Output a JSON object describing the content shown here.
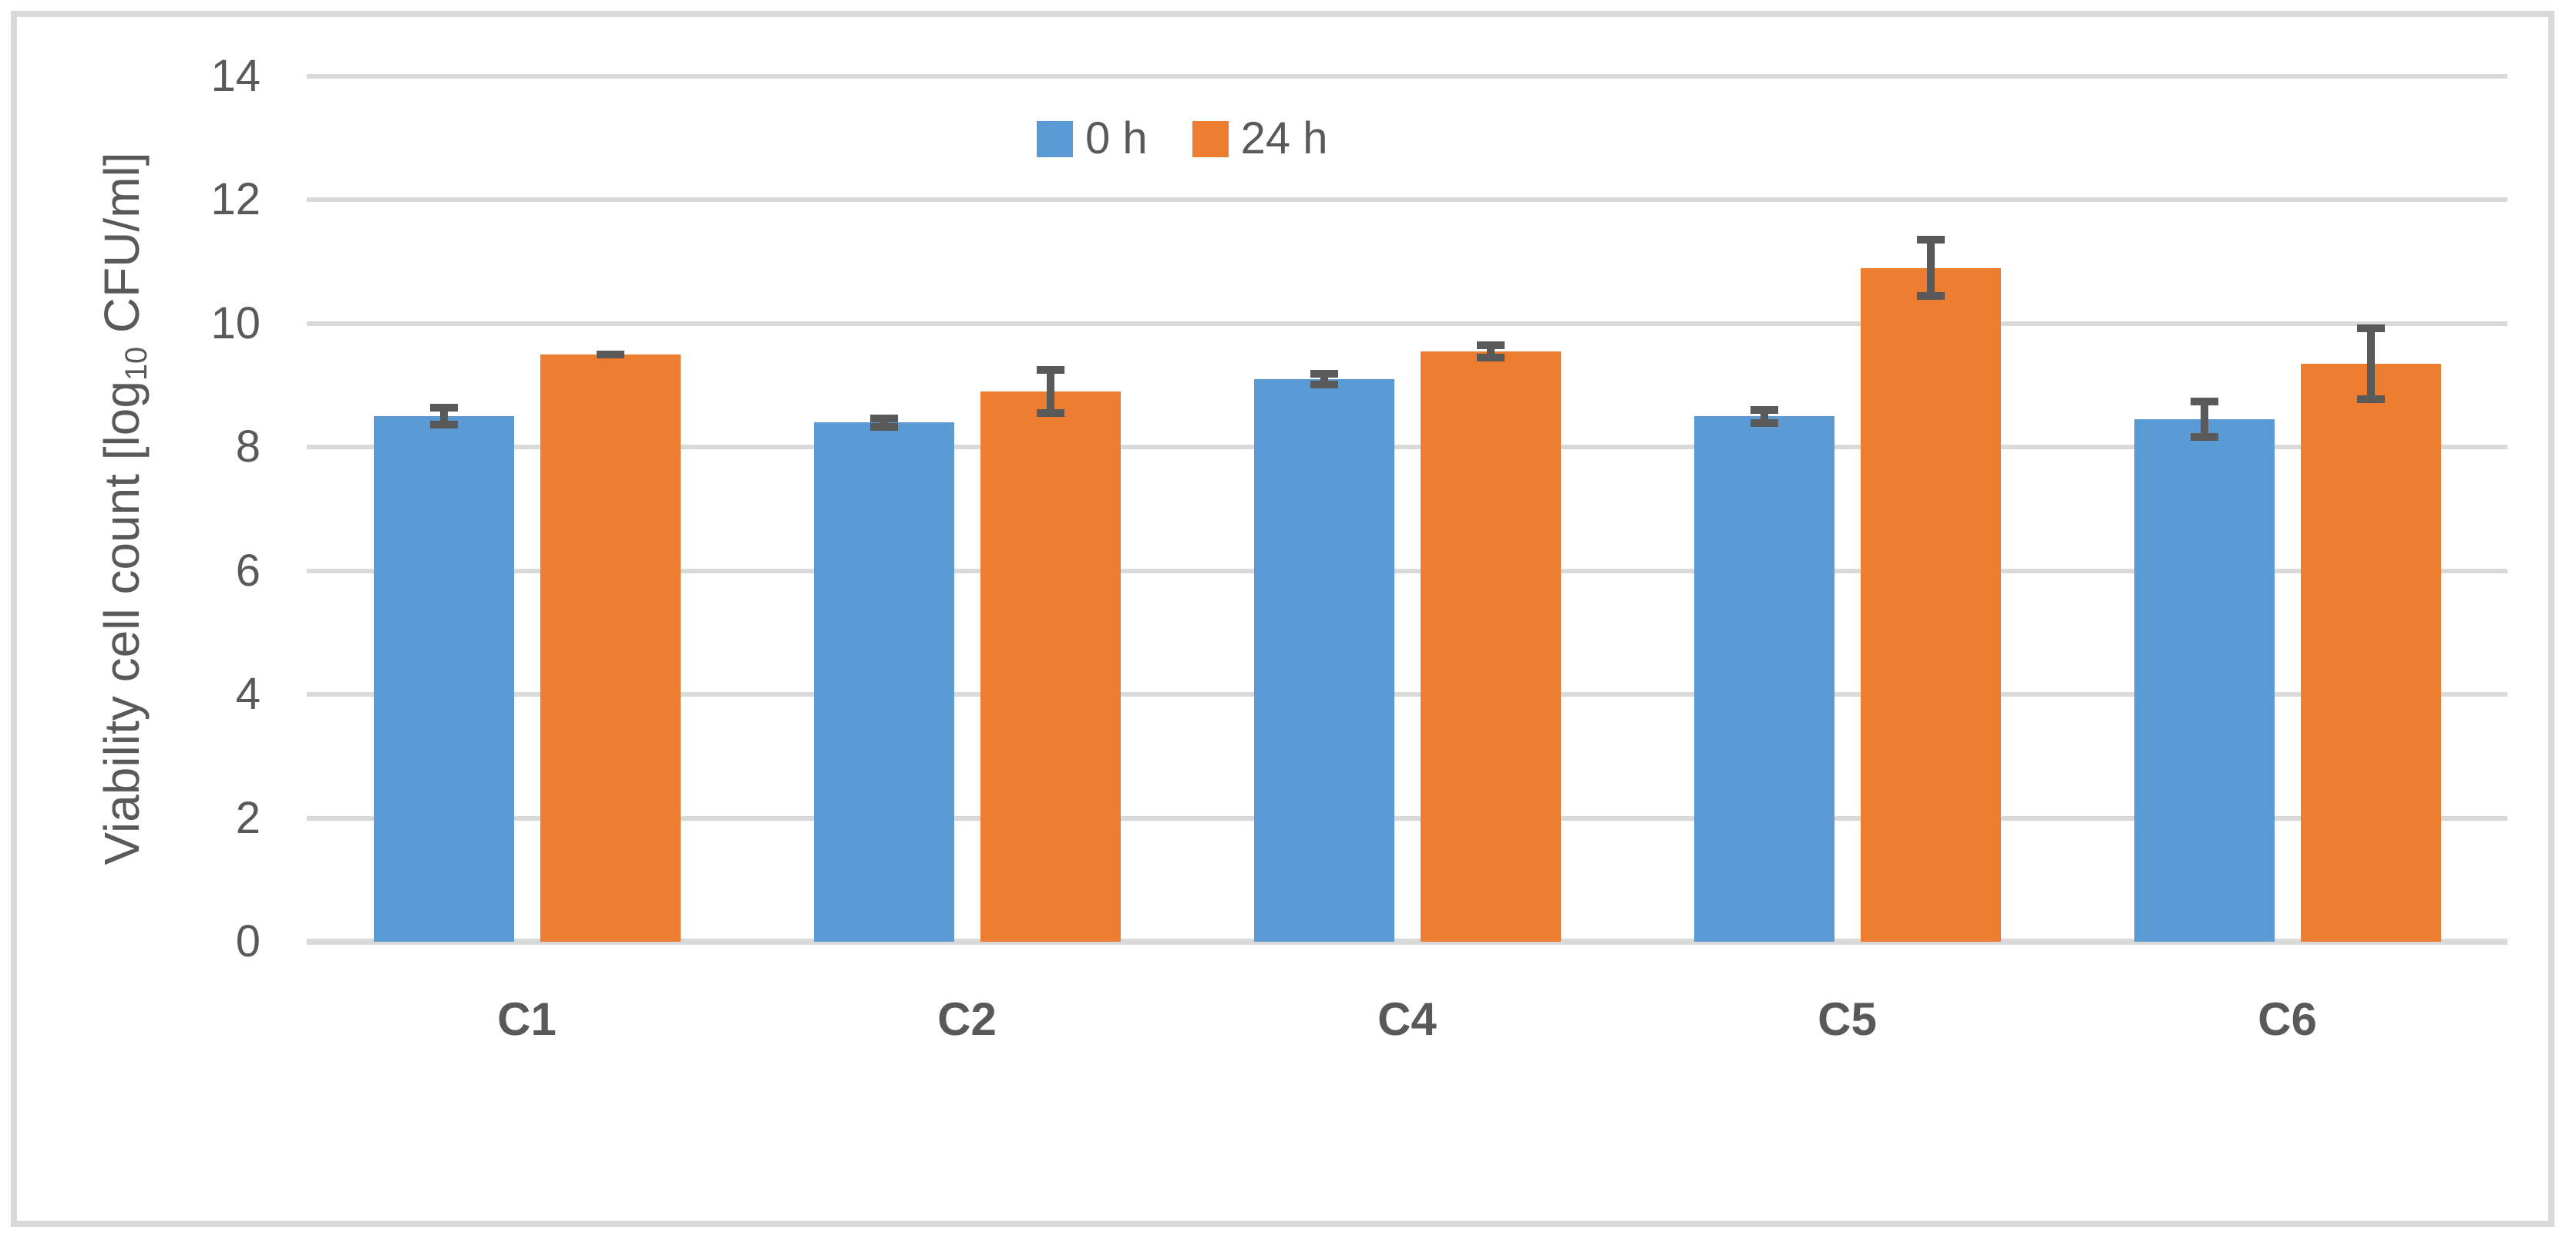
{
  "chart_data": {
    "type": "bar",
    "title": "",
    "categories": [
      "C1",
      "C2",
      "C4",
      "C5",
      "C6"
    ],
    "series": [
      {
        "name": "0 h",
        "color": "#5B9BD5",
        "values": [
          8.5,
          8.4,
          9.1,
          8.5,
          8.45
        ],
        "errors": [
          0.2,
          0.13,
          0.15,
          0.17,
          0.35
        ]
      },
      {
        "name": "24 h",
        "color": "#ED7D31",
        "values": [
          9.5,
          8.9,
          9.55,
          10.9,
          9.35
        ],
        "errors": [
          0.06,
          0.41,
          0.16,
          0.52,
          0.63
        ]
      }
    ],
    "xlabel": "",
    "ylabel": "Viability cell count [log10 CFU/ml]",
    "ylabel_parts": {
      "prefix": "Viability cell count [log",
      "sub": "10",
      "suffix": " CFU/ml]"
    },
    "ylim": [
      0,
      14
    ],
    "ytick_step": 2,
    "yticks": [
      0,
      2,
      4,
      6,
      8,
      10,
      12,
      14
    ],
    "grid": true,
    "legend_position": "top-center",
    "colors": {
      "series_0h": "#5B9BD5",
      "series_24h": "#ED7D31",
      "error_bar": "#595959",
      "text": "#595959",
      "gridline": "#D9D9D9",
      "chart_border": "#D9D9D9",
      "background": "#FFFFFF"
    }
  }
}
